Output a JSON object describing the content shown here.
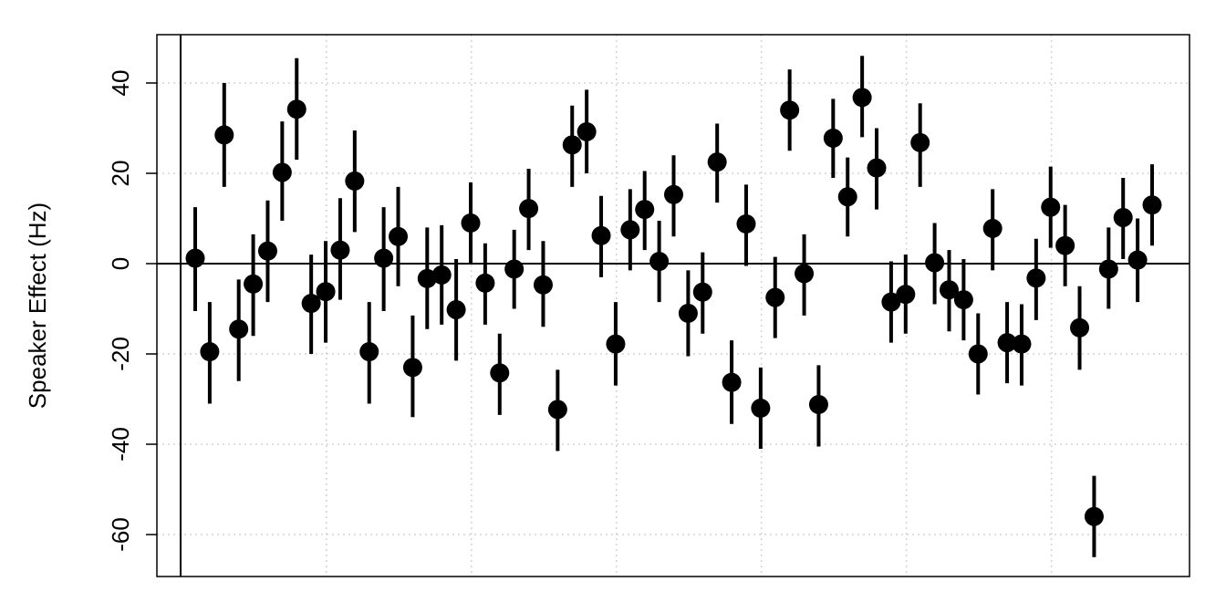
{
  "chart_data": {
    "type": "scatter",
    "title": "",
    "xlabel": "",
    "ylabel": "Speaker Effect (Hz)",
    "ylim": [
      -69,
      51
    ],
    "y_ticks": [
      40,
      20,
      0,
      -20,
      -40,
      -60
    ],
    "y_tick_labels": [
      "40",
      "20",
      "0",
      "-20",
      "-40",
      "-60"
    ],
    "x_axis_labels_shown": false,
    "grid": true,
    "reference_line_y": 0,
    "error_bars": true,
    "series": [
      {
        "points": [
          {
            "x": 1,
            "y": 1.2,
            "low": -10.5,
            "high": 12.5
          },
          {
            "x": 2,
            "y": -19.5,
            "low": -31,
            "high": -8.5
          },
          {
            "x": 3,
            "y": 28.5,
            "low": 17,
            "high": 40
          },
          {
            "x": 4,
            "y": -14.5,
            "low": -26,
            "high": -3.5
          },
          {
            "x": 5,
            "y": -4.5,
            "low": -16,
            "high": 6.5
          },
          {
            "x": 6,
            "y": 2.8,
            "low": -8.5,
            "high": 14
          },
          {
            "x": 7,
            "y": 20.2,
            "low": 9.5,
            "high": 31.5
          },
          {
            "x": 8,
            "y": 34.2,
            "low": 23,
            "high": 45.5
          },
          {
            "x": 9,
            "y": -8.8,
            "low": -20,
            "high": 2
          },
          {
            "x": 10,
            "y": -6.2,
            "low": -17.5,
            "high": 5
          },
          {
            "x": 11,
            "y": 3,
            "low": -8,
            "high": 14.5
          },
          {
            "x": 12,
            "y": 18.3,
            "low": 7,
            "high": 29.5
          },
          {
            "x": 13,
            "y": -19.5,
            "low": -31,
            "high": -8.5
          },
          {
            "x": 14,
            "y": 1.2,
            "low": -10.5,
            "high": 12.5
          },
          {
            "x": 15,
            "y": 6,
            "low": -5,
            "high": 17
          },
          {
            "x": 16,
            "y": -23,
            "low": -34,
            "high": -11.5
          },
          {
            "x": 17,
            "y": -3.3,
            "low": -14.5,
            "high": 8
          },
          {
            "x": 18,
            "y": -2.5,
            "low": -13.5,
            "high": 8.5
          },
          {
            "x": 19,
            "y": -10.2,
            "low": -21.5,
            "high": 1
          },
          {
            "x": 20,
            "y": 9,
            "low": 0,
            "high": 18
          },
          {
            "x": 21,
            "y": -4.3,
            "low": -13.5,
            "high": 4.5
          },
          {
            "x": 22,
            "y": -24.2,
            "low": -33.5,
            "high": -15.5
          },
          {
            "x": 23,
            "y": -1.2,
            "low": -10,
            "high": 7.5
          },
          {
            "x": 24,
            "y": 12.2,
            "low": 3,
            "high": 21
          },
          {
            "x": 25,
            "y": -4.7,
            "low": -14,
            "high": 5
          },
          {
            "x": 26,
            "y": -32.3,
            "low": -41.5,
            "high": -23.5
          },
          {
            "x": 27,
            "y": 26.3,
            "low": 17,
            "high": 35
          },
          {
            "x": 28,
            "y": 29.2,
            "low": 20,
            "high": 38.5
          },
          {
            "x": 29,
            "y": 6.2,
            "low": -3,
            "high": 15
          },
          {
            "x": 30,
            "y": -17.8,
            "low": -27,
            "high": -8.5
          },
          {
            "x": 31,
            "y": 7.5,
            "low": -1.5,
            "high": 16.5
          },
          {
            "x": 32,
            "y": 12,
            "low": 3,
            "high": 20.5
          },
          {
            "x": 33,
            "y": 0.5,
            "low": -8.5,
            "high": 9.5
          },
          {
            "x": 34,
            "y": 15.3,
            "low": 6,
            "high": 24
          },
          {
            "x": 35,
            "y": -11,
            "low": -20.5,
            "high": -1.5
          },
          {
            "x": 36,
            "y": -6.3,
            "low": -15.5,
            "high": 2.5
          },
          {
            "x": 37,
            "y": 22.5,
            "low": 13.5,
            "high": 31
          },
          {
            "x": 38,
            "y": -26.3,
            "low": -35.5,
            "high": -17
          },
          {
            "x": 39,
            "y": 8.8,
            "low": -0.5,
            "high": 17.5
          },
          {
            "x": 40,
            "y": -32,
            "low": -41,
            "high": -23
          },
          {
            "x": 41,
            "y": -7.5,
            "low": -16.5,
            "high": 1.5
          },
          {
            "x": 42,
            "y": 34,
            "low": 25,
            "high": 43
          },
          {
            "x": 43,
            "y": -2.2,
            "low": -11.5,
            "high": 6.5
          },
          {
            "x": 44,
            "y": -31.2,
            "low": -40.5,
            "high": -22.5
          },
          {
            "x": 45,
            "y": 27.8,
            "low": 19,
            "high": 36.5
          },
          {
            "x": 46,
            "y": 14.8,
            "low": 6,
            "high": 23.5
          },
          {
            "x": 47,
            "y": 36.8,
            "low": 28,
            "high": 46
          },
          {
            "x": 48,
            "y": 21.2,
            "low": 12,
            "high": 30
          },
          {
            "x": 49,
            "y": -8.5,
            "low": -17.5,
            "high": 0.5
          },
          {
            "x": 50,
            "y": -6.8,
            "low": -15.5,
            "high": 2
          },
          {
            "x": 51,
            "y": 26.8,
            "low": 17,
            "high": 35.5
          },
          {
            "x": 52,
            "y": 0.2,
            "low": -9,
            "high": 9
          },
          {
            "x": 53,
            "y": -5.8,
            "low": -15,
            "high": 3
          },
          {
            "x": 54,
            "y": -8,
            "low": -17,
            "high": 1
          },
          {
            "x": 55,
            "y": -20,
            "low": -29,
            "high": -11
          },
          {
            "x": 56,
            "y": 7.8,
            "low": -1.5,
            "high": 16.5
          },
          {
            "x": 57,
            "y": -17.5,
            "low": -26.5,
            "high": -8.5
          },
          {
            "x": 58,
            "y": -17.8,
            "low": -27,
            "high": -9
          },
          {
            "x": 59,
            "y": -3.2,
            "low": -12.5,
            "high": 5.5
          },
          {
            "x": 60,
            "y": 12.5,
            "low": 3.5,
            "high": 21.5
          },
          {
            "x": 61,
            "y": 4,
            "low": -5,
            "high": 13
          },
          {
            "x": 62,
            "y": -14.2,
            "low": -23.5,
            "high": -5
          },
          {
            "x": 63,
            "y": -56,
            "low": -65,
            "high": -47
          },
          {
            "x": 64,
            "y": -1.2,
            "low": -10,
            "high": 8
          },
          {
            "x": 65,
            "y": 10.2,
            "low": 1,
            "high": 19
          },
          {
            "x": 66,
            "y": 0.8,
            "low": -8.5,
            "high": 10
          },
          {
            "x": 67,
            "y": 13,
            "low": 4,
            "high": 22
          }
        ]
      }
    ],
    "colors": {
      "points": "#000000",
      "grid": "#d3d3d3",
      "axis": "#000000",
      "background": "#ffffff"
    }
  }
}
